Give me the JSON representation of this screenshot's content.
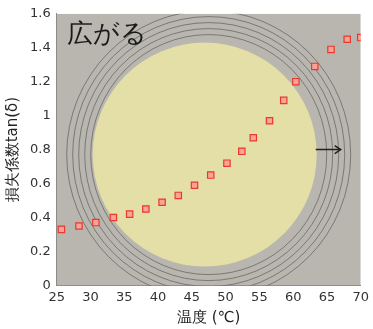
{
  "chart_data": {
    "type": "scatter",
    "x_label": "温度 (℃)",
    "y_label": "損失係数tan(δ)",
    "annotation": "広がる",
    "series": [
      {
        "name": "tan(δ)",
        "color": "#e8392c",
        "marker": "square",
        "x": [
          25.7,
          28.3,
          30.8,
          33.4,
          35.8,
          38.2,
          40.6,
          43.0,
          45.4,
          47.8,
          50.2,
          52.4,
          54.1,
          56.5,
          58.6,
          60.4,
          63.2,
          65.6,
          68.0,
          70.0
        ],
        "values": [
          0.33,
          0.35,
          0.37,
          0.4,
          0.42,
          0.45,
          0.49,
          0.53,
          0.59,
          0.65,
          0.72,
          0.79,
          0.87,
          0.97,
          1.09,
          1.2,
          1.29,
          1.39,
          1.45,
          1.46
        ]
      }
    ],
    "xlim": [
      25,
      70
    ],
    "xticks": [
      25,
      30,
      35,
      40,
      45,
      50,
      55,
      60,
      65,
      70
    ],
    "ylim": [
      0,
      1.6
    ],
    "yticks": [
      0,
      0.2,
      0.4,
      0.6,
      0.8,
      1,
      1.2,
      1.4,
      1.6
    ],
    "grid": false
  }
}
